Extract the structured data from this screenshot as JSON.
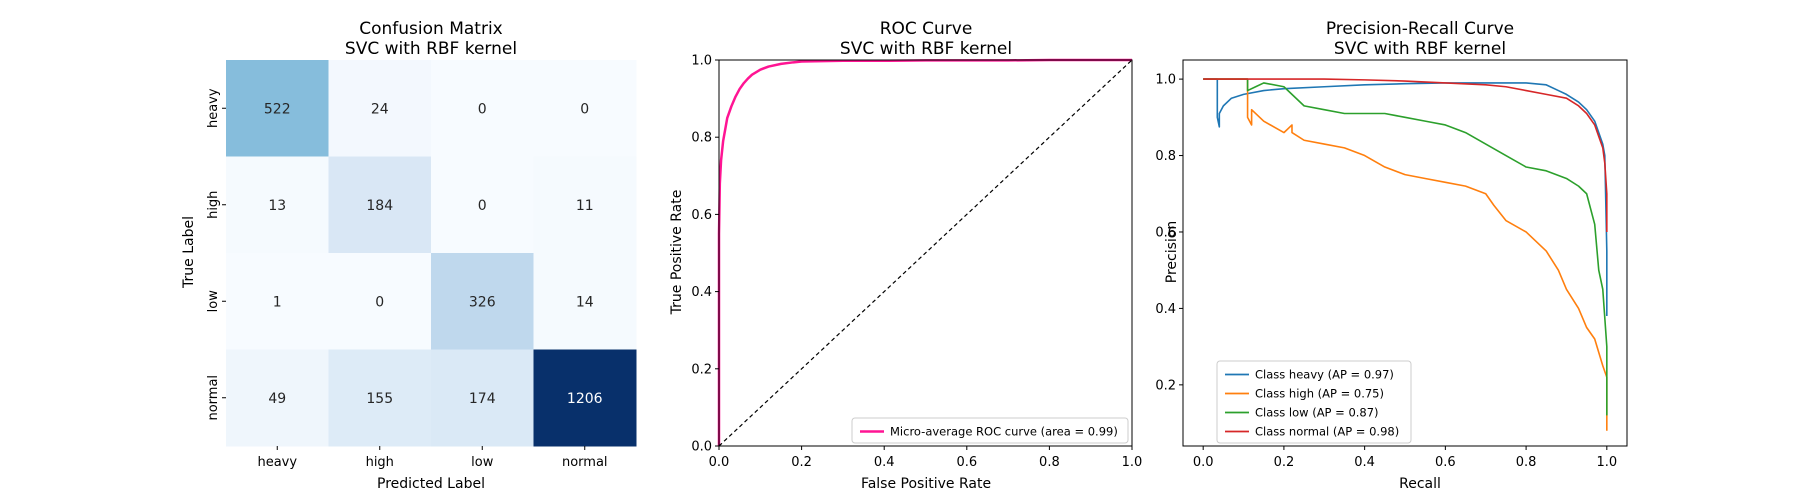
{
  "chart_data": [
    {
      "type": "heatmap",
      "title_line1": "Confusion Matrix",
      "title_line2": "SVC with RBF kernel",
      "xlabel": "Predicted Label",
      "ylabel": "True Label",
      "x_categories": [
        "heavy",
        "high",
        "low",
        "normal"
      ],
      "y_categories": [
        "heavy",
        "high",
        "low",
        "normal"
      ],
      "colormap": "Blues",
      "matrix": [
        [
          522,
          24,
          0,
          0
        ],
        [
          13,
          184,
          0,
          11
        ],
        [
          1,
          0,
          326,
          14
        ],
        [
          49,
          155,
          174,
          1206
        ]
      ]
    },
    {
      "type": "line",
      "title_line1": "ROC Curve",
      "title_line2": "SVC with RBF kernel",
      "xlabel": "False Positive Rate",
      "ylabel": "True Positive Rate",
      "xlim": [
        0,
        1
      ],
      "ylim": [
        0,
        1
      ],
      "xticks": [
        "0.0",
        "0.2",
        "0.4",
        "0.6",
        "0.8",
        "1.0"
      ],
      "yticks": [
        "0.0",
        "0.2",
        "0.4",
        "0.6",
        "0.8",
        "1.0"
      ],
      "legend_position": "lower-right",
      "series": [
        {
          "name": "Micro-average ROC curve (area = 0.99)",
          "color": "#ff1493",
          "x": [
            0,
            0.0,
            0.002,
            0.005,
            0.01,
            0.015,
            0.02,
            0.03,
            0.04,
            0.05,
            0.06,
            0.07,
            0.08,
            0.1,
            0.12,
            0.15,
            0.18,
            0.2,
            0.25,
            0.3,
            0.4,
            0.5,
            0.6,
            0.7,
            0.8,
            0.9,
            1.0
          ],
          "y": [
            0,
            0.55,
            0.68,
            0.74,
            0.79,
            0.82,
            0.85,
            0.88,
            0.905,
            0.925,
            0.94,
            0.952,
            0.962,
            0.975,
            0.983,
            0.99,
            0.994,
            0.996,
            0.997,
            0.998,
            0.998,
            0.999,
            0.999,
            0.999,
            1.0,
            1.0,
            1.0
          ]
        },
        {
          "name": "",
          "color": "#000000",
          "dashed": true,
          "x": [
            0,
            1
          ],
          "y": [
            0,
            1
          ]
        }
      ]
    },
    {
      "type": "line",
      "title_line1": "Precision-Recall Curve",
      "title_line2": "SVC with RBF kernel",
      "xlabel": "Recall",
      "ylabel": "Precision",
      "xlim": [
        -0.05,
        1.05
      ],
      "ylim": [
        0.04,
        1.05
      ],
      "xticks": [
        "0.0",
        "0.2",
        "0.4",
        "0.6",
        "0.8",
        "1.0"
      ],
      "yticks": [
        "0.2",
        "0.4",
        "0.6",
        "0.8",
        "1.0"
      ],
      "legend_position": "lower-left",
      "series": [
        {
          "name": "Class heavy (AP = 0.97)",
          "color": "#1f77b4",
          "x": [
            0.0,
            0.035,
            0.035,
            0.04,
            0.04,
            0.05,
            0.07,
            0.1,
            0.15,
            0.2,
            0.3,
            0.4,
            0.5,
            0.6,
            0.7,
            0.8,
            0.85,
            0.88,
            0.9,
            0.93,
            0.95,
            0.97,
            0.98,
            0.99,
            0.995,
            1.0,
            1.0
          ],
          "y": [
            1.0,
            1.0,
            0.9,
            0.875,
            0.91,
            0.93,
            0.95,
            0.96,
            0.97,
            0.975,
            0.98,
            0.985,
            0.988,
            0.99,
            0.99,
            0.99,
            0.985,
            0.97,
            0.96,
            0.94,
            0.92,
            0.89,
            0.86,
            0.83,
            0.8,
            0.55,
            0.38
          ]
        },
        {
          "name": "Class high (AP = 0.75)",
          "color": "#ff7f0e",
          "x": [
            0.0,
            0.11,
            0.11,
            0.12,
            0.12,
            0.15,
            0.2,
            0.22,
            0.22,
            0.25,
            0.3,
            0.35,
            0.4,
            0.45,
            0.5,
            0.55,
            0.6,
            0.65,
            0.7,
            0.72,
            0.75,
            0.8,
            0.85,
            0.88,
            0.9,
            0.93,
            0.95,
            0.97,
            0.99,
            1.0,
            1.0
          ],
          "y": [
            1.0,
            1.0,
            0.9,
            0.88,
            0.92,
            0.89,
            0.86,
            0.88,
            0.86,
            0.84,
            0.83,
            0.82,
            0.8,
            0.77,
            0.75,
            0.74,
            0.73,
            0.72,
            0.7,
            0.67,
            0.63,
            0.6,
            0.55,
            0.5,
            0.45,
            0.4,
            0.35,
            0.32,
            0.25,
            0.22,
            0.08
          ]
        },
        {
          "name": "Class low (AP = 0.87)",
          "color": "#2ca02c",
          "x": [
            0.0,
            0.11,
            0.11,
            0.13,
            0.15,
            0.2,
            0.25,
            0.3,
            0.35,
            0.4,
            0.45,
            0.5,
            0.55,
            0.6,
            0.65,
            0.7,
            0.75,
            0.8,
            0.85,
            0.9,
            0.93,
            0.95,
            0.97,
            0.98,
            0.99,
            1.0,
            1.0
          ],
          "y": [
            1.0,
            1.0,
            0.97,
            0.98,
            0.99,
            0.98,
            0.93,
            0.92,
            0.91,
            0.91,
            0.91,
            0.9,
            0.89,
            0.88,
            0.86,
            0.83,
            0.8,
            0.77,
            0.76,
            0.74,
            0.72,
            0.7,
            0.62,
            0.5,
            0.45,
            0.3,
            0.12
          ]
        },
        {
          "name": "Class normal (AP = 0.98)",
          "color": "#d62728",
          "x": [
            0.0,
            0.2,
            0.3,
            0.4,
            0.5,
            0.6,
            0.7,
            0.75,
            0.8,
            0.85,
            0.9,
            0.93,
            0.95,
            0.97,
            0.98,
            0.99,
            0.995,
            1.0,
            1.0
          ],
          "y": [
            1.0,
            1.0,
            1.0,
            0.998,
            0.995,
            0.99,
            0.985,
            0.98,
            0.97,
            0.96,
            0.95,
            0.93,
            0.91,
            0.88,
            0.85,
            0.82,
            0.78,
            0.7,
            0.6
          ]
        }
      ]
    }
  ]
}
